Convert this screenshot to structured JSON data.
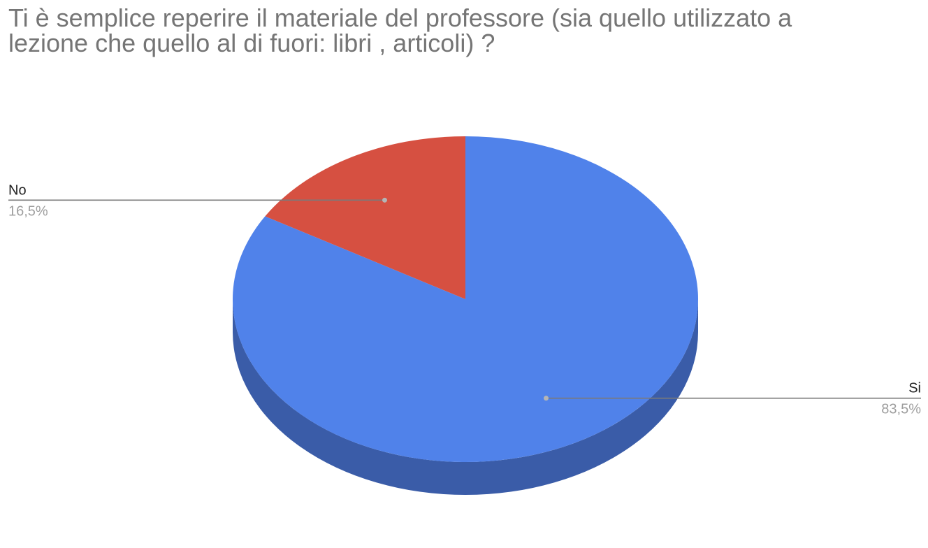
{
  "chart_data": {
    "type": "pie",
    "title_lines": [
      "Ti è semplice reperire il materiale del professore (sia quello utilizzato a",
      "lezione che quello al di fuori: libri , articoli) ?"
    ],
    "three_d": true,
    "slices": [
      {
        "label": "Si",
        "value": 83.5,
        "value_label": "83,5%",
        "color": "#5082ea",
        "side_color": "#3a5ca8"
      },
      {
        "label": "No",
        "value": 16.5,
        "value_label": "16,5%",
        "color": "#d65041",
        "side_color": "#9a3a2f"
      }
    ],
    "start_angle_deg": 0,
    "direction": "clockwise",
    "legend": "none",
    "label_style": "callout"
  }
}
